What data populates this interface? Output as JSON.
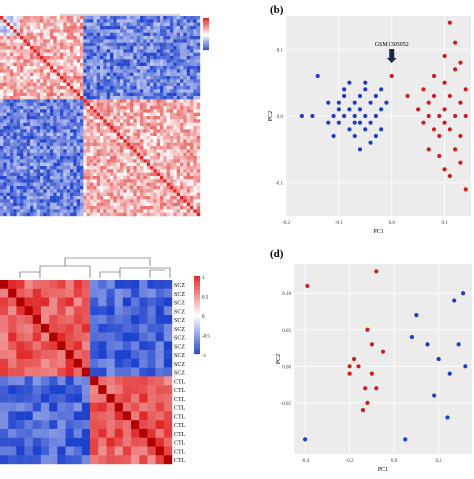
{
  "panels": {
    "b": {
      "label": "(b)"
    },
    "d": {
      "label": "(d)"
    }
  },
  "chart_data": [
    {
      "type": "heatmap",
      "panel": "a",
      "description_scale": "correlation, red high, blue low",
      "colorbar": {
        "colors": [
          "#e41a1c",
          "#ffffff",
          "#1f3fbf"
        ]
      },
      "blocks": [
        "large blue cluster top-right",
        "red cluster bottom-right",
        "red cluster top-left"
      ]
    },
    {
      "type": "scatter",
      "panel": "b",
      "xlabel": "PC1",
      "ylabel": "PC2",
      "x_ticks": [
        "-0.2",
        "-0.1",
        "0.0",
        "0.1"
      ],
      "y_ticks": [
        "0.1",
        "0.0",
        "-0.1"
      ],
      "xlim": [
        -0.2,
        0.15
      ],
      "ylim": [
        -0.15,
        0.15
      ],
      "annotation": "GSM1305052",
      "series": [
        {
          "color": "#1f3fbf",
          "points": [
            [
              -0.17,
              0.0
            ],
            [
              -0.15,
              0.0
            ],
            [
              -0.14,
              0.06
            ],
            [
              -0.12,
              0.02
            ],
            [
              -0.11,
              0.0
            ],
            [
              -0.1,
              0.02
            ],
            [
              -0.1,
              -0.01
            ],
            [
              -0.09,
              0.03
            ],
            [
              -0.09,
              0.0
            ],
            [
              -0.08,
              0.01
            ],
            [
              -0.08,
              -0.02
            ],
            [
              -0.07,
              0.02
            ],
            [
              -0.07,
              0.0
            ],
            [
              -0.07,
              -0.03
            ],
            [
              -0.06,
              0.03
            ],
            [
              -0.06,
              0.01
            ],
            [
              -0.06,
              -0.01
            ],
            [
              -0.05,
              0.04
            ],
            [
              -0.05,
              0.0
            ],
            [
              -0.05,
              -0.02
            ],
            [
              -0.04,
              0.02
            ],
            [
              -0.04,
              -0.01
            ],
            [
              -0.03,
              0.03
            ],
            [
              -0.03,
              0.0
            ],
            [
              -0.02,
              0.01
            ],
            [
              -0.02,
              -0.02
            ],
            [
              -0.01,
              0.02
            ],
            [
              -0.08,
              0.05
            ],
            [
              -0.11,
              -0.03
            ],
            [
              -0.06,
              -0.05
            ],
            [
              -0.04,
              -0.04
            ],
            [
              -0.09,
              0.04
            ],
            [
              -0.07,
              -0.01
            ],
            [
              -0.1,
              0.01
            ],
            [
              -0.02,
              0.04
            ],
            [
              -0.05,
              0.05
            ],
            [
              -0.12,
              -0.01
            ],
            [
              -0.03,
              -0.03
            ]
          ]
        },
        {
          "color": "#cc1f1f",
          "points": [
            [
              0.0,
              0.06
            ],
            [
              0.03,
              0.03
            ],
            [
              0.05,
              0.01
            ],
            [
              0.06,
              -0.01
            ],
            [
              0.07,
              0.02
            ],
            [
              0.07,
              0.0
            ],
            [
              0.08,
              -0.02
            ],
            [
              0.08,
              0.03
            ],
            [
              0.09,
              0.0
            ],
            [
              0.09,
              -0.03
            ],
            [
              0.1,
              0.05
            ],
            [
              0.1,
              0.01
            ],
            [
              0.1,
              -0.01
            ],
            [
              0.11,
              0.03
            ],
            [
              0.11,
              -0.02
            ],
            [
              0.12,
              0.0
            ],
            [
              0.12,
              0.07
            ],
            [
              0.12,
              -0.05
            ],
            [
              0.13,
              0.02
            ],
            [
              0.13,
              -0.03
            ],
            [
              0.14,
              0.0
            ],
            [
              0.14,
              0.04
            ],
            [
              0.11,
              0.14
            ],
            [
              0.1,
              0.09
            ],
            [
              0.12,
              0.11
            ],
            [
              0.13,
              -0.07
            ],
            [
              0.11,
              -0.09
            ],
            [
              0.14,
              -0.11
            ],
            [
              0.09,
              -0.06
            ],
            [
              0.08,
              0.06
            ],
            [
              0.13,
              0.08
            ],
            [
              0.1,
              -0.08
            ],
            [
              0.06,
              0.04
            ],
            [
              0.07,
              -0.05
            ]
          ]
        }
      ]
    },
    {
      "type": "heatmap",
      "panel": "c",
      "row_labels": [
        "SCZ",
        "SCZ",
        "SCZ",
        "SCZ",
        "SCZ",
        "SCZ",
        "SCZ",
        "SCZ",
        "SCZ",
        "SCZ",
        "SCZ",
        "CTL",
        "CTL",
        "CTL",
        "CTL",
        "CTL",
        "CTL",
        "CTL",
        "CTL",
        "CTL",
        "CTL"
      ],
      "colorbar_ticks": [
        "1",
        "0.5",
        "0",
        "-0.5",
        "-1"
      ]
    },
    {
      "type": "scatter",
      "panel": "d",
      "xlabel": "PC1",
      "ylabel": "PC2",
      "x_ticks": [
        "-0.4",
        "-0.2",
        "0.0",
        "0.2"
      ],
      "y_ticks": [
        "0.10",
        "0.05",
        "0.00",
        "-0.05"
      ],
      "xlim": [
        -0.45,
        0.35
      ],
      "ylim": [
        -0.12,
        0.14
      ],
      "series": [
        {
          "color": "#cc1f1f",
          "points": [
            [
              -0.39,
              0.11
            ],
            [
              -0.08,
              0.13
            ],
            [
              -0.12,
              0.05
            ],
            [
              -0.18,
              0.01
            ],
            [
              -0.16,
              0.0
            ],
            [
              -0.1,
              0.03
            ],
            [
              -0.1,
              -0.01
            ],
            [
              -0.2,
              -0.01
            ],
            [
              -0.13,
              -0.03
            ],
            [
              -0.08,
              -0.03
            ],
            [
              -0.14,
              -0.06
            ],
            [
              -0.12,
              -0.05
            ],
            [
              -0.2,
              0.0
            ],
            [
              -0.05,
              0.02
            ]
          ]
        },
        {
          "color": "#1f3fbf",
          "points": [
            [
              0.1,
              0.07
            ],
            [
              0.08,
              0.04
            ],
            [
              0.15,
              0.03
            ],
            [
              0.2,
              0.01
            ],
            [
              0.27,
              0.09
            ],
            [
              0.31,
              0.1
            ],
            [
              0.29,
              0.03
            ],
            [
              0.25,
              -0.01
            ],
            [
              0.18,
              -0.04
            ],
            [
              0.24,
              -0.07
            ],
            [
              0.32,
              0.0
            ],
            [
              0.05,
              -0.1
            ],
            [
              -0.4,
              -0.1
            ]
          ]
        }
      ]
    }
  ]
}
